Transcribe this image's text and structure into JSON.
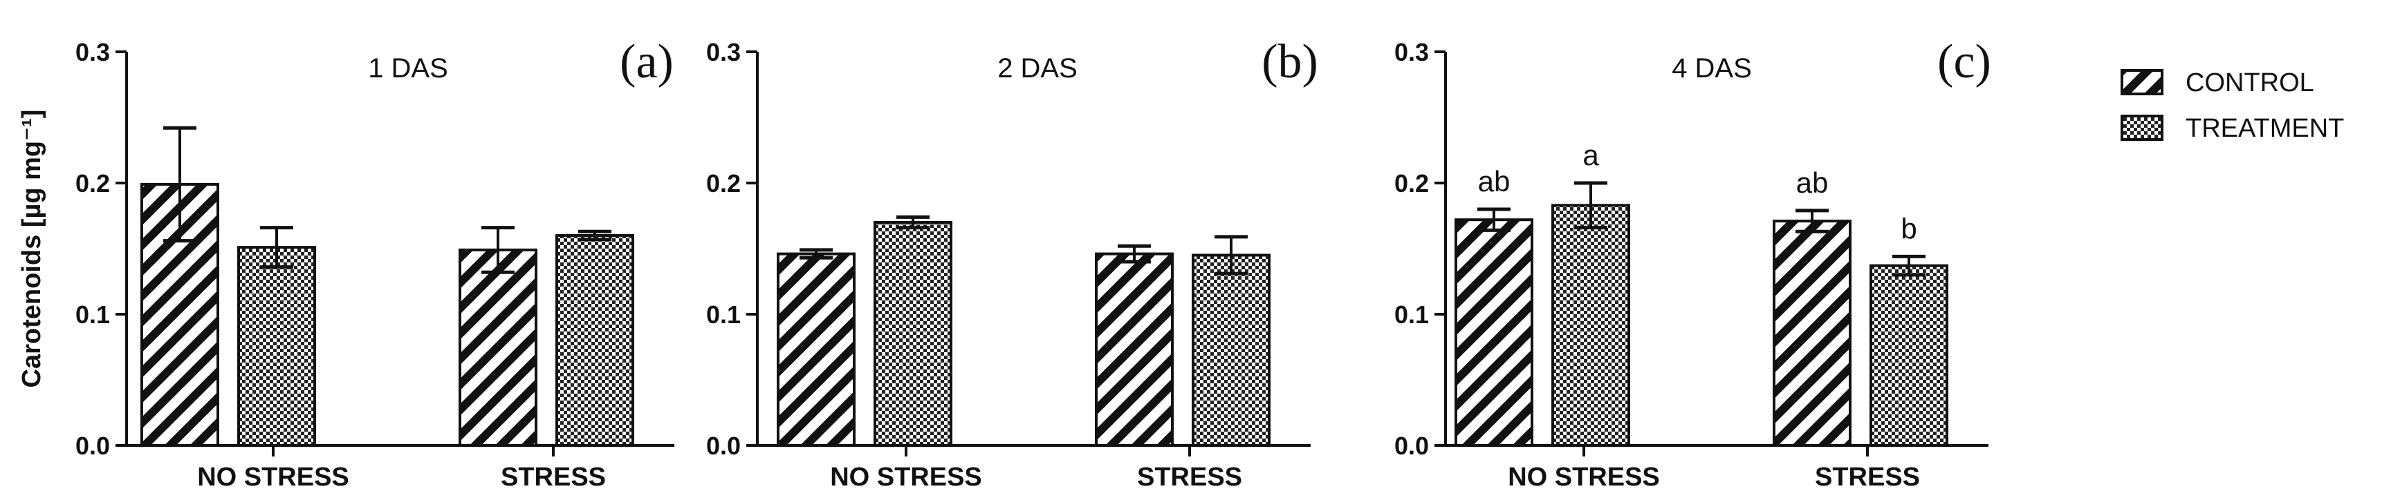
{
  "chart_data": {
    "type": "bar",
    "ylabel": "Carotenoids [µg mg⁻¹]",
    "ylim": [
      0,
      0.3
    ],
    "yticks": [
      "0.0",
      "0.1",
      "0.2",
      "0.3"
    ],
    "categories": [
      "NO STRESS",
      "STRESS"
    ],
    "legend": {
      "position": "right",
      "entries": [
        {
          "name": "CONTROL",
          "pattern": "diagonal-hatch"
        },
        {
          "name": "TREATMENT",
          "pattern": "checkered"
        }
      ]
    },
    "panels": [
      {
        "label": "(a)",
        "title": "1 DAS",
        "series": [
          {
            "name": "CONTROL",
            "values": [
              0.199,
              0.149
            ],
            "errors": [
              0.043,
              0.017
            ],
            "sig": [
              "",
              ""
            ]
          },
          {
            "name": "TREATMENT",
            "values": [
              0.151,
              0.16
            ],
            "errors": [
              0.015,
              0.003
            ],
            "sig": [
              "",
              ""
            ]
          }
        ]
      },
      {
        "label": "(b)",
        "title": "2 DAS",
        "series": [
          {
            "name": "CONTROL",
            "values": [
              0.146,
              0.146
            ],
            "errors": [
              0.003,
              0.006
            ],
            "sig": [
              "",
              ""
            ]
          },
          {
            "name": "TREATMENT",
            "values": [
              0.17,
              0.145
            ],
            "errors": [
              0.004,
              0.014
            ],
            "sig": [
              "",
              ""
            ]
          }
        ]
      },
      {
        "label": "(c)",
        "title": "4 DAS",
        "series": [
          {
            "name": "CONTROL",
            "values": [
              0.172,
              0.171
            ],
            "errors": [
              0.008,
              0.008
            ],
            "sig": [
              "ab",
              "ab"
            ]
          },
          {
            "name": "TREATMENT",
            "values": [
              0.183,
              0.137
            ],
            "errors": [
              0.017,
              0.007
            ],
            "sig": [
              "a",
              "b"
            ]
          }
        ]
      }
    ]
  }
}
